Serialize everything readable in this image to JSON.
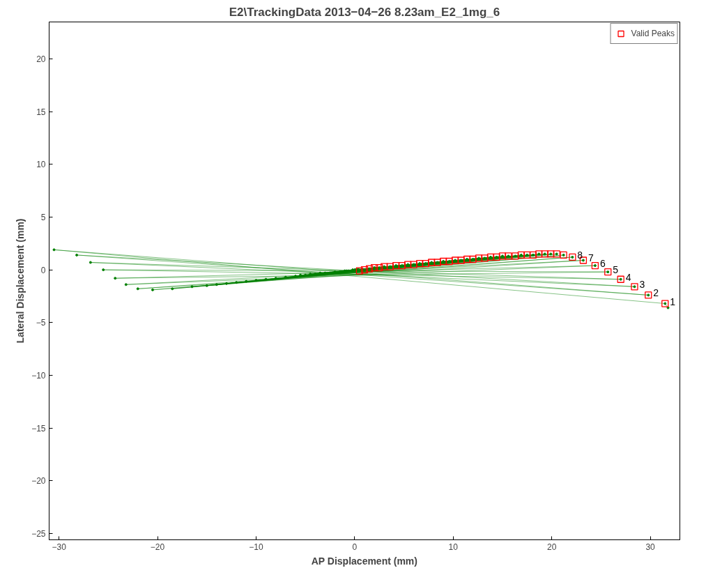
{
  "chart_data": {
    "type": "line",
    "title": "E2\\TrackingData 2013−04−26 8.23am_E2_1mg_6",
    "xlabel": "AP Displacement (mm)",
    "ylabel": "Lateral Displacement (mm)",
    "xlim": [
      -31,
      33
    ],
    "ylim": [
      -25.6,
      23.5
    ],
    "xticks": [
      -30,
      -20,
      -10,
      0,
      10,
      20,
      30
    ],
    "yticks": [
      -25,
      -20,
      -15,
      -10,
      -5,
      0,
      5,
      10,
      15,
      20
    ],
    "grid": false,
    "legend": "top right",
    "series": [
      {
        "color": "#008000",
        "marker": "circle",
        "x": [
          31.8,
          31.5,
          -30.5,
          29.8,
          -28.2,
          28.4,
          -26.8,
          27.0,
          -25.5,
          25.7,
          -24.3,
          24.4,
          -23.2,
          23.2,
          -22.0,
          22.1,
          -20.5,
          21.2,
          -18.5,
          20.5,
          -16.5,
          19.9,
          -15.0,
          19.3,
          -14.0,
          18.7,
          -13.0,
          18.1,
          -12.0,
          17.5,
          -11.0,
          16.9,
          -10.0,
          16.3,
          -9.0,
          15.6,
          -8.0,
          15.0,
          -7.0,
          14.4,
          -6.0,
          13.8,
          -5.5,
          13.2,
          -5.0,
          12.6,
          -4.5,
          12.0,
          -4.0,
          11.4,
          -3.5,
          10.8,
          -3.0,
          10.2,
          -2.5,
          9.6,
          -2.0,
          9.0,
          -1.5,
          8.4,
          -1.0,
          7.8,
          -0.8,
          7.2,
          -0.6,
          6.6,
          -0.4,
          6.0,
          -0.2,
          5.4,
          0.0,
          4.8,
          0.1,
          4.2,
          0.2,
          3.6,
          0.3,
          3.0,
          0.3,
          2.5,
          0.4,
          2.0,
          0.4,
          1.5,
          0.4,
          1.0,
          0.4,
          0.5
        ],
        "values": [
          -3.6,
          -3.2,
          1.9,
          -2.4,
          1.4,
          -1.6,
          0.7,
          -0.9,
          0.0,
          -0.2,
          -0.8,
          0.4,
          -1.4,
          0.9,
          -1.8,
          1.2,
          -1.9,
          1.4,
          -1.8,
          1.5,
          -1.6,
          1.5,
          -1.5,
          1.5,
          -1.4,
          1.5,
          -1.3,
          1.4,
          -1.2,
          1.4,
          -1.1,
          1.4,
          -1.0,
          1.3,
          -0.9,
          1.3,
          -0.8,
          1.3,
          -0.7,
          1.2,
          -0.6,
          1.2,
          -0.5,
          1.1,
          -0.5,
          1.1,
          -0.4,
          1.0,
          -0.4,
          1.0,
          -0.3,
          0.9,
          -0.3,
          0.9,
          -0.3,
          0.8,
          -0.2,
          0.8,
          -0.2,
          0.7,
          -0.1,
          0.7,
          -0.1,
          0.6,
          -0.1,
          0.6,
          -0.1,
          0.5,
          0.0,
          0.5,
          0.0,
          0.4,
          0.0,
          0.4,
          0.0,
          0.3,
          0.0,
          0.3,
          0.0,
          0.2,
          0.0,
          0.2,
          0.0,
          0.1,
          0.0,
          0.0,
          0.0,
          -0.1
        ]
      },
      {
        "type": "scatter",
        "name": "Valid Peaks",
        "color": "#ff0000",
        "marker": "square",
        "x": [
          31.5,
          29.8,
          28.4,
          27.0,
          25.7,
          24.4,
          23.2,
          22.1,
          21.2,
          20.5,
          19.9,
          19.3,
          18.7,
          18.1,
          17.5,
          16.9,
          16.3,
          15.6,
          15.0,
          14.4,
          13.8,
          13.2,
          12.6,
          12.0,
          11.4,
          10.8,
          10.2,
          9.6,
          9.0,
          8.4,
          7.8,
          7.2,
          6.6,
          6.0,
          5.4,
          4.8,
          4.2,
          3.6,
          3.0,
          2.5,
          2.0,
          1.5,
          1.0,
          0.5
        ],
        "values": [
          -3.2,
          -2.4,
          -1.6,
          -0.9,
          -0.2,
          0.4,
          0.9,
          1.2,
          1.4,
          1.5,
          1.5,
          1.5,
          1.5,
          1.4,
          1.4,
          1.4,
          1.3,
          1.3,
          1.3,
          1.2,
          1.2,
          1.1,
          1.1,
          1.0,
          1.0,
          0.9,
          0.9,
          0.8,
          0.8,
          0.7,
          0.7,
          0.6,
          0.6,
          0.5,
          0.5,
          0.4,
          0.4,
          0.3,
          0.3,
          0.2,
          0.2,
          0.1,
          0.0,
          -0.1
        ]
      }
    ],
    "annotations": [
      {
        "text": "1",
        "x": 31.5,
        "y": -3.2
      },
      {
        "text": "2",
        "x": 29.8,
        "y": -2.4
      },
      {
        "text": "3",
        "x": 28.4,
        "y": -1.6
      },
      {
        "text": "4",
        "x": 27.0,
        "y": -0.9
      },
      {
        "text": "5",
        "x": 25.7,
        "y": -0.2
      },
      {
        "text": "6",
        "x": 24.4,
        "y": 0.4
      },
      {
        "text": "7",
        "x": 23.2,
        "y": 0.9
      },
      {
        "text": "8",
        "x": 22.1,
        "y": 1.2
      }
    ]
  }
}
